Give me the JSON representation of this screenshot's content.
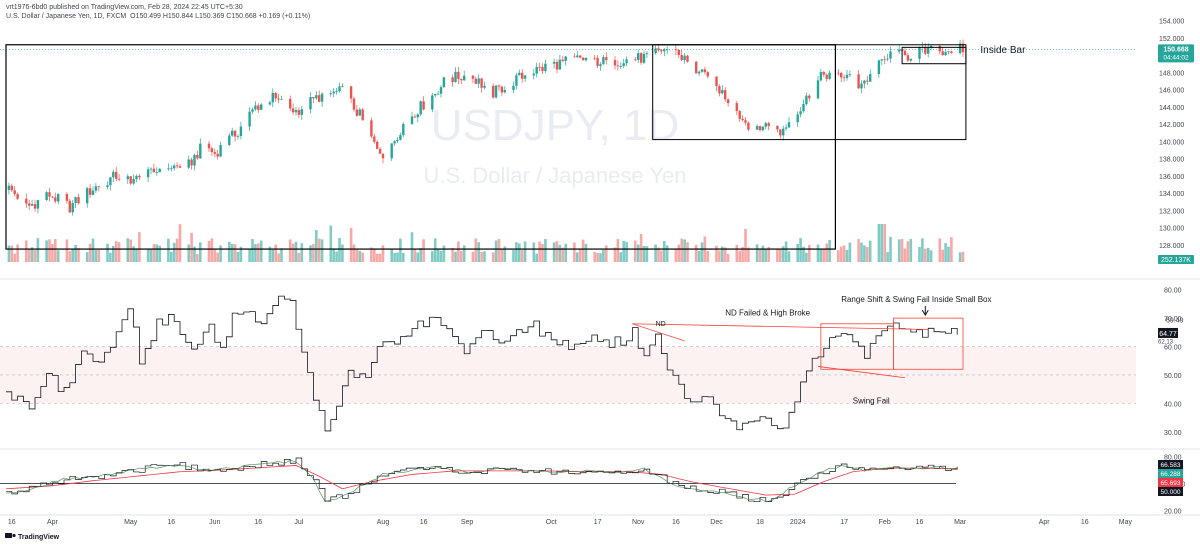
{
  "header": {
    "author_line": "vrt1976-6bd0 published on TradingView.com, Feb 28, 2024 22:45 UTC+5:30",
    "symbol_line": "U.S. Dollar / Japanese Yen, 1D, FXCM",
    "ohlc": "O150.499 H150.844 L150.369 C150.668 +0.169 (+0.11%)"
  },
  "watermark": {
    "symbol": "USDJPY, 1D",
    "name": "U.S. Dollar / Japanese Yen"
  },
  "branding": {
    "logo_text": "TradingView"
  },
  "colors": {
    "up": "#26a69a",
    "down": "#ef5350",
    "vol_up": "#80cbc4",
    "vol_down": "#f7a9a7",
    "rsi_line": "#131722",
    "ma_red": "#f23645",
    "ma_green": "#2e7d32",
    "box": "#000000",
    "annot_red": "#f44336"
  },
  "chart_data": [
    {
      "type": "candlestick",
      "name": "price",
      "ylim": [
        126,
        155
      ],
      "y_ticks": [
        "154.000",
        "152.000",
        "150.000",
        "148.000",
        "146.000",
        "144.000",
        "142.000",
        "140.000",
        "138.000",
        "136.000",
        "134.000",
        "132.000",
        "130.000",
        "128.000"
      ],
      "y_tick_values": [
        154,
        152,
        150,
        148,
        146,
        144,
        142,
        140,
        138,
        136,
        134,
        132,
        130,
        128
      ],
      "last_price": "150.668",
      "countdown": "04:44:02",
      "volume_label": "252.137K",
      "path_points": [
        [
          0,
          134.8
        ],
        [
          8,
          132.5
        ],
        [
          15,
          133.8
        ],
        [
          22,
          132.4
        ],
        [
          30,
          134.5
        ],
        [
          38,
          136.0
        ],
        [
          46,
          135.5
        ],
        [
          55,
          137.2
        ],
        [
          62,
          136.8
        ],
        [
          68,
          139.5
        ],
        [
          72,
          138.6
        ],
        [
          80,
          141.2
        ],
        [
          86,
          144.0
        ],
        [
          92,
          145.0
        ],
        [
          100,
          143.5
        ],
        [
          108,
          145.2
        ],
        [
          116,
          145.8
        ],
        [
          122,
          143.0
        ],
        [
          126,
          140.2
        ],
        [
          130,
          138.6
        ],
        [
          134,
          140.3
        ],
        [
          138,
          142.5
        ],
        [
          145,
          144.6
        ],
        [
          152,
          147.2
        ],
        [
          160,
          147.7
        ],
        [
          168,
          145.6
        ],
        [
          175,
          147.0
        ],
        [
          182,
          148.2
        ],
        [
          190,
          149.0
        ],
        [
          198,
          149.6
        ],
        [
          206,
          149.2
        ],
        [
          213,
          149.4
        ],
        [
          220,
          149.7
        ],
        [
          226,
          150.6
        ],
        [
          230,
          150.8
        ],
        [
          234,
          149.5
        ],
        [
          238,
          148.2
        ],
        [
          242,
          147.2
        ],
        [
          246,
          146.0
        ],
        [
          250,
          144.5
        ],
        [
          254,
          142.5
        ],
        [
          258,
          141.6
        ],
        [
          263,
          141.9
        ],
        [
          267,
          141.0
        ],
        [
          270,
          142.3
        ],
        [
          274,
          143.8
        ],
        [
          278,
          146.0
        ],
        [
          282,
          147.8
        ],
        [
          286,
          147.9
        ],
        [
          290,
          147.5
        ],
        [
          294,
          146.5
        ],
        [
          298,
          147.5
        ],
        [
          302,
          149.2
        ],
        [
          306,
          150.2
        ],
        [
          310,
          149.8
        ],
        [
          315,
          150.3
        ],
        [
          320,
          150.5
        ],
        [
          325,
          150.6
        ],
        [
          329,
          150.67
        ]
      ],
      "annotations": [
        "Inside Bar"
      ],
      "boxes": [
        {
          "x0": 0,
          "x1": 286,
          "y0": 127.5,
          "y1": 151.2
        },
        {
          "x0": 223,
          "x1": 331,
          "y0": 140.2,
          "y1": 151.2
        },
        {
          "x0": 309,
          "x1": 331,
          "y0": 149.0,
          "y1": 150.9
        }
      ]
    },
    {
      "type": "line",
      "name": "rsi",
      "ylim": [
        25,
        82
      ],
      "y_ticks": [
        "80.00",
        "70.00",
        "60.00",
        "50.00",
        "40.00",
        "30.00"
      ],
      "y_tick_values": [
        80,
        70,
        60,
        50,
        40,
        30
      ],
      "labels": {
        "v1": "69.49",
        "v2": "64.77",
        "v3": "62.13"
      },
      "path_points": [
        [
          0,
          45
        ],
        [
          8,
          37
        ],
        [
          14,
          50
        ],
        [
          20,
          44
        ],
        [
          26,
          58
        ],
        [
          32,
          55
        ],
        [
          38,
          65
        ],
        [
          42,
          75
        ],
        [
          46,
          55
        ],
        [
          52,
          68
        ],
        [
          58,
          70
        ],
        [
          64,
          58
        ],
        [
          70,
          66
        ],
        [
          74,
          60
        ],
        [
          78,
          70
        ],
        [
          82,
          73
        ],
        [
          88,
          68
        ],
        [
          94,
          76
        ],
        [
          98,
          75
        ],
        [
          102,
          58
        ],
        [
          106,
          42
        ],
        [
          110,
          32
        ],
        [
          114,
          40
        ],
        [
          118,
          52
        ],
        [
          124,
          48
        ],
        [
          128,
          60
        ],
        [
          134,
          62
        ],
        [
          140,
          66
        ],
        [
          146,
          70
        ],
        [
          152,
          68
        ],
        [
          158,
          58
        ],
        [
          164,
          66
        ],
        [
          170,
          62
        ],
        [
          176,
          66
        ],
        [
          182,
          67
        ],
        [
          188,
          62
        ],
        [
          194,
          60
        ],
        [
          200,
          63
        ],
        [
          206,
          61
        ],
        [
          212,
          62
        ],
        [
          216,
          65
        ],
        [
          220,
          55
        ],
        [
          224,
          66
        ],
        [
          228,
          50
        ],
        [
          232,
          46
        ],
        [
          236,
          40
        ],
        [
          240,
          44
        ],
        [
          244,
          38
        ],
        [
          248,
          36
        ],
        [
          252,
          30
        ],
        [
          256,
          34
        ],
        [
          260,
          36
        ],
        [
          264,
          32
        ],
        [
          268,
          31
        ],
        [
          272,
          40
        ],
        [
          276,
          52
        ],
        [
          280,
          58
        ],
        [
          284,
          62
        ],
        [
          288,
          66
        ],
        [
          292,
          63
        ],
        [
          296,
          57
        ],
        [
          300,
          64
        ],
        [
          304,
          68
        ],
        [
          308,
          66
        ],
        [
          312,
          64
        ],
        [
          318,
          65
        ],
        [
          324,
          66
        ],
        [
          328,
          64.77
        ]
      ],
      "annotations": [
        "Range Shift & Swing Fail Inside Small Box",
        "ND Failed & High Broke",
        "ND",
        "Swing Fail"
      ]
    },
    {
      "type": "line",
      "name": "oscillator",
      "ylim": [
        17,
        85
      ],
      "y_ticks": [
        "80.00",
        "50.000",
        "20.00"
      ],
      "y_tick_values": [
        80,
        50,
        20
      ],
      "labels": {
        "v1": "66.583",
        "v2": "66.288",
        "v3": "65.693",
        "v4": "50.000"
      },
      "series": [
        {
          "name": "fast",
          "path_points": [
            [
              0,
              38
            ],
            [
              10,
              45
            ],
            [
              20,
              55
            ],
            [
              30,
              57
            ],
            [
              40,
              62
            ],
            [
              50,
              68
            ],
            [
              60,
              70
            ],
            [
              70,
              64
            ],
            [
              80,
              68
            ],
            [
              90,
              72
            ],
            [
              100,
              75
            ],
            [
              106,
              55
            ],
            [
              110,
              30
            ],
            [
              116,
              36
            ],
            [
              122,
              46
            ],
            [
              130,
              60
            ],
            [
              140,
              65
            ],
            [
              150,
              68
            ],
            [
              160,
              62
            ],
            [
              170,
              66
            ],
            [
              180,
              64
            ],
            [
              190,
              63
            ],
            [
              200,
              64
            ],
            [
              210,
              62
            ],
            [
              220,
              66
            ],
            [
              226,
              56
            ],
            [
              232,
              47
            ],
            [
              240,
              42
            ],
            [
              248,
              40
            ],
            [
              256,
              33
            ],
            [
              264,
              30
            ],
            [
              270,
              44
            ],
            [
              278,
              58
            ],
            [
              284,
              66
            ],
            [
              290,
              70
            ],
            [
              296,
              64
            ],
            [
              302,
              68
            ],
            [
              310,
              66
            ],
            [
              320,
              68
            ],
            [
              328,
              66.58
            ]
          ]
        },
        {
          "name": "slow",
          "path_points": [
            [
              0,
              44
            ],
            [
              15,
              47
            ],
            [
              30,
              53
            ],
            [
              45,
              58
            ],
            [
              60,
              63
            ],
            [
              75,
              65
            ],
            [
              90,
              68
            ],
            [
              100,
              70
            ],
            [
              108,
              58
            ],
            [
              116,
              44
            ],
            [
              126,
              52
            ],
            [
              140,
              60
            ],
            [
              155,
              64
            ],
            [
              170,
              64
            ],
            [
              185,
              64
            ],
            [
              200,
              63
            ],
            [
              215,
              63
            ],
            [
              226,
              60
            ],
            [
              236,
              52
            ],
            [
              248,
              45
            ],
            [
              262,
              37
            ],
            [
              272,
              38
            ],
            [
              282,
              52
            ],
            [
              292,
              63
            ],
            [
              304,
              67
            ],
            [
              316,
              67
            ],
            [
              328,
              66.29
            ]
          ]
        }
      ]
    }
  ],
  "x_axis": {
    "ticks": [
      {
        "label": "16",
        "t": 2
      },
      {
        "label": "Apr",
        "t": 16
      },
      {
        "label": "May",
        "t": 43
      },
      {
        "label": "16",
        "t": 57
      },
      {
        "label": "Jun",
        "t": 72
      },
      {
        "label": "16",
        "t": 87
      },
      {
        "label": "Jul",
        "t": 101
      },
      {
        "label": "Aug",
        "t": 130
      },
      {
        "label": "16",
        "t": 144
      },
      {
        "label": "Sep",
        "t": 159
      },
      {
        "label": "Oct",
        "t": 188
      },
      {
        "label": "17",
        "t": 204
      },
      {
        "label": "Nov",
        "t": 218
      },
      {
        "label": "16",
        "t": 231
      },
      {
        "label": "Dec",
        "t": 245
      },
      {
        "label": "18",
        "t": 260
      },
      {
        "label": "2024",
        "t": 273
      },
      {
        "label": "17",
        "t": 289
      },
      {
        "label": "Feb",
        "t": 303
      },
      {
        "label": "16",
        "t": 315
      },
      {
        "label": "Mar",
        "t": 329
      },
      {
        "label": "Apr",
        "t": 358
      },
      {
        "label": "16",
        "t": 372
      },
      {
        "label": "May",
        "t": 386
      }
    ]
  }
}
